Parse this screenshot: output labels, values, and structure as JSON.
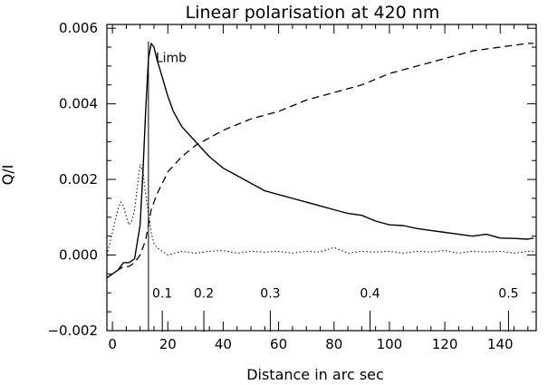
{
  "chart_data": {
    "type": "line",
    "title": "Linear polarisation at 420 nm",
    "xlabel": "Distance in arc sec",
    "ylabel": "Q/I",
    "xlim": [
      -2,
      153
    ],
    "ylim": [
      -0.002,
      0.0061
    ],
    "x_ticks": [
      "0",
      "20",
      "40",
      "60",
      "80",
      "100",
      "120",
      "140"
    ],
    "y_ticks": [
      "−0.002",
      "0.000",
      "0.002",
      "0.004",
      "0.006"
    ],
    "x_tick_values": [
      0,
      20,
      40,
      60,
      80,
      100,
      120,
      140
    ],
    "y_tick_values": [
      -0.002,
      0.0,
      0.002,
      0.004,
      0.006
    ],
    "grid": false,
    "limb": {
      "label": "Limb",
      "x": 13
    },
    "inner_scale": [
      {
        "label": "0.1",
        "x": 18
      },
      {
        "label": "0.2",
        "x": 33
      },
      {
        "label": "0.3",
        "x": 57
      },
      {
        "label": "0.4",
        "x": 93
      },
      {
        "label": "0.5",
        "x": 143
      }
    ],
    "series": [
      {
        "style": "solid",
        "x": [
          -2,
          0,
          2,
          4,
          6,
          8,
          10,
          11,
          12,
          13,
          14,
          15,
          16,
          18,
          20,
          22,
          25,
          30,
          35,
          40,
          45,
          50,
          55,
          60,
          65,
          70,
          75,
          80,
          85,
          90,
          95,
          100,
          105,
          110,
          115,
          120,
          125,
          130,
          135,
          140,
          145,
          150,
          152
        ],
        "y": [
          -0.0006,
          -0.0005,
          -0.0004,
          -0.0002,
          -0.0002,
          -0.0001,
          0.0008,
          0.0022,
          0.0038,
          0.0052,
          0.0056,
          0.0055,
          0.0052,
          0.0047,
          0.0042,
          0.0038,
          0.0034,
          0.003,
          0.0026,
          0.0023,
          0.0021,
          0.0019,
          0.0017,
          0.0016,
          0.0015,
          0.0014,
          0.0013,
          0.0012,
          0.0011,
          0.00105,
          0.0009,
          0.0008,
          0.00078,
          0.0007,
          0.00065,
          0.0006,
          0.00055,
          0.0005,
          0.00055,
          0.00045,
          0.00044,
          0.00042,
          0.00045
        ]
      },
      {
        "style": "dashed",
        "x": [
          -2,
          0,
          2,
          4,
          6,
          8,
          10,
          12,
          13,
          14,
          16,
          18,
          20,
          25,
          30,
          35,
          40,
          50,
          60,
          70,
          80,
          90,
          100,
          110,
          120,
          130,
          140,
          150,
          152
        ],
        "y": [
          -0.0006,
          -0.0005,
          -0.0004,
          -0.0003,
          -0.0003,
          -0.0002,
          0.0,
          0.0004,
          0.0008,
          0.0012,
          0.0016,
          0.0019,
          0.0022,
          0.0026,
          0.0029,
          0.0031,
          0.0033,
          0.0036,
          0.0038,
          0.0041,
          0.0043,
          0.0045,
          0.0048,
          0.005,
          0.0052,
          0.0054,
          0.0055,
          0.0056,
          0.0056
        ]
      },
      {
        "style": "dotted",
        "x": [
          -2,
          0,
          2,
          3,
          4,
          5,
          6,
          7,
          8,
          9,
          10,
          11,
          12,
          13,
          14,
          15,
          16,
          18,
          20,
          25,
          30,
          35,
          40,
          45,
          50,
          55,
          60,
          65,
          70,
          75,
          80,
          85,
          90,
          95,
          100,
          105,
          110,
          115,
          120,
          125,
          130,
          135,
          140,
          145,
          150,
          152
        ],
        "y": [
          0.0,
          0.0006,
          0.0012,
          0.0014,
          0.0013,
          0.001,
          0.0008,
          0.0009,
          0.0012,
          0.0018,
          0.0024,
          0.0022,
          0.0016,
          0.0011,
          0.0006,
          0.0003,
          0.0002,
          0.0001,
          0.0,
          0.0001,
          5e-05,
          0.0001,
          0.00012,
          5e-05,
          0.0001,
          8e-05,
          0.0001,
          5e-05,
          0.0001,
          8e-05,
          0.0002,
          5e-05,
          0.0001,
          8e-05,
          0.0001,
          5e-05,
          0.0001,
          8e-05,
          0.00012,
          5e-05,
          0.0001,
          8e-05,
          0.0001,
          5e-05,
          0.0001,
          0.0001
        ]
      }
    ]
  }
}
